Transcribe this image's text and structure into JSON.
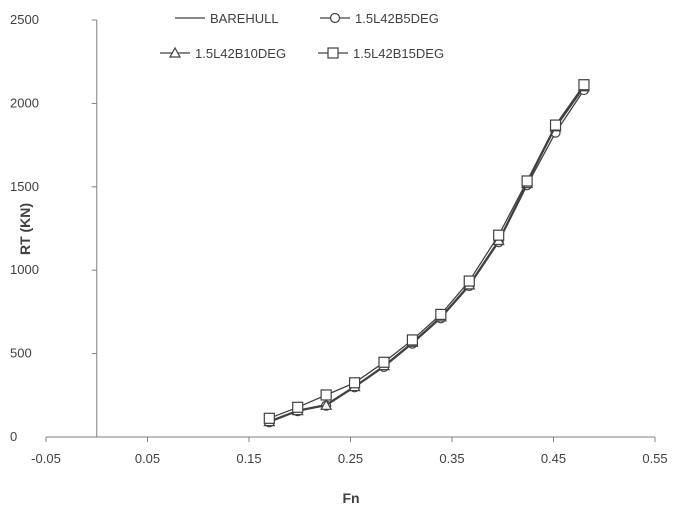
{
  "chart_data": {
    "type": "line",
    "xlabel": "Fn",
    "ylabel": "RT (KN)",
    "xlim": [
      -0.05,
      0.55
    ],
    "ylim": [
      0,
      2500
    ],
    "xticks": [
      "-0.05",
      "0.05",
      "0.15",
      "0.25",
      "0.35",
      "0.45",
      "0.55"
    ],
    "yticks": [
      "0",
      "500",
      "1000",
      "1500",
      "2000",
      "2500"
    ],
    "grid": false,
    "legend_position": "top",
    "line_color": "#404040",
    "x": [
      0.17,
      0.198,
      0.226,
      0.254,
      0.283,
      0.311,
      0.339,
      0.367,
      0.396,
      0.424,
      0.452,
      0.48
    ],
    "series": [
      {
        "name": "BAREHULL",
        "marker": "none",
        "values": [
          95,
          160,
          195,
          305,
          425,
          565,
          720,
          915,
          1180,
          1525,
          1855,
          2095
        ]
      },
      {
        "name": "1.5L42B5DEG",
        "marker": "circle",
        "values": [
          88,
          155,
          188,
          298,
          420,
          560,
          712,
          905,
          1168,
          1510,
          1825,
          2080
        ]
      },
      {
        "name": "1.5L42B10DEG",
        "marker": "triangle",
        "values": [
          92,
          158,
          190,
          302,
          428,
          568,
          720,
          912,
          1178,
          1520,
          1860,
          2100
        ]
      },
      {
        "name": "1.5L42B15DEG",
        "marker": "square",
        "values": [
          112,
          178,
          252,
          325,
          448,
          582,
          735,
          935,
          1210,
          1535,
          1870,
          2112
        ]
      }
    ]
  }
}
